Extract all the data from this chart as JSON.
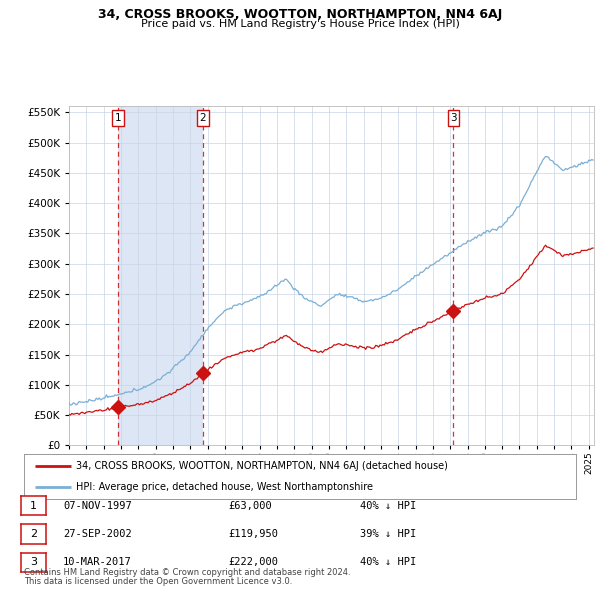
{
  "title1": "34, CROSS BROOKS, WOOTTON, NORTHAMPTON, NN4 6AJ",
  "title2": "Price paid vs. HM Land Registry's House Price Index (HPI)",
  "background_color": "#ffffff",
  "plot_bg_color": "#dce6f5",
  "plot_bg_color2": "#ffffff",
  "grid_color": "#c8d4e8",
  "hpi_color": "#7bafd4",
  "price_color": "#cc1111",
  "sale_marker_color": "#cc1111",
  "dashed_line_color": "#cc1111",
  "legend_label_price": "34, CROSS BROOKS, WOOTTON, NORTHAMPTON, NN4 6AJ (detached house)",
  "legend_label_hpi": "HPI: Average price, detached house, West Northamptonshire",
  "sales": [
    {
      "num": 1,
      "date_x": 1997.85,
      "price": 63000,
      "label": "07-NOV-1997",
      "price_str": "£63,000",
      "pct": "40% ↓ HPI"
    },
    {
      "num": 2,
      "date_x": 2002.73,
      "price": 119950,
      "label": "27-SEP-2002",
      "price_str": "£119,950",
      "pct": "39% ↓ HPI"
    },
    {
      "num": 3,
      "date_x": 2017.19,
      "price": 222000,
      "label": "10-MAR-2017",
      "price_str": "£222,000",
      "pct": "40% ↓ HPI"
    }
  ],
  "footnote1": "Contains HM Land Registry data © Crown copyright and database right 2024.",
  "footnote2": "This data is licensed under the Open Government Licence v3.0.",
  "ylim": [
    0,
    560000
  ],
  "xlim_start": 1995.0,
  "xlim_end": 2025.3
}
